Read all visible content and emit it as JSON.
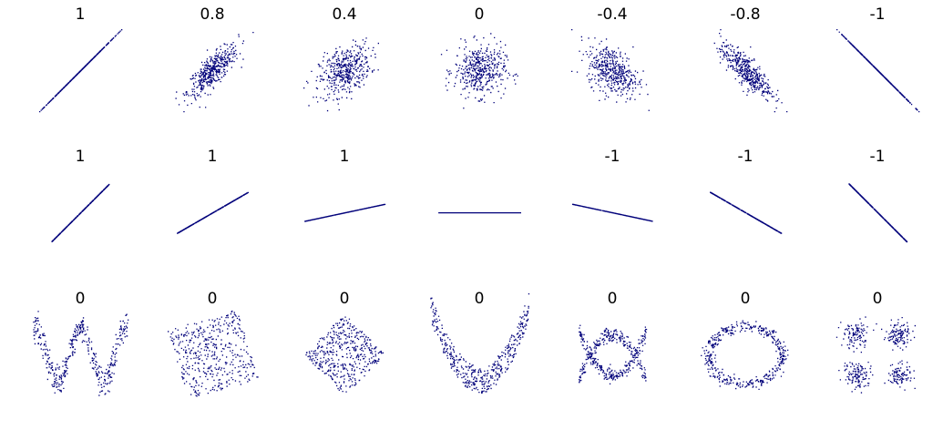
{
  "rows": [
    {
      "panels": [
        {
          "label": 1
        },
        {
          "label": 0.8
        },
        {
          "label": 0.4
        },
        {
          "label": 0
        },
        {
          "label": -0.4
        },
        {
          "label": -0.8
        },
        {
          "label": -1
        }
      ]
    },
    {
      "panels": [
        {
          "label": 1
        },
        {
          "label": 1
        },
        {
          "label": 1
        },
        {
          "label": null
        },
        {
          "label": -1
        },
        {
          "label": -1
        },
        {
          "label": -1
        }
      ]
    },
    {
      "panels": [
        {
          "label": 0
        },
        {
          "label": 0
        },
        {
          "label": 0
        },
        {
          "label": 0
        },
        {
          "label": 0
        },
        {
          "label": 0
        },
        {
          "label": 0
        }
      ]
    }
  ]
}
